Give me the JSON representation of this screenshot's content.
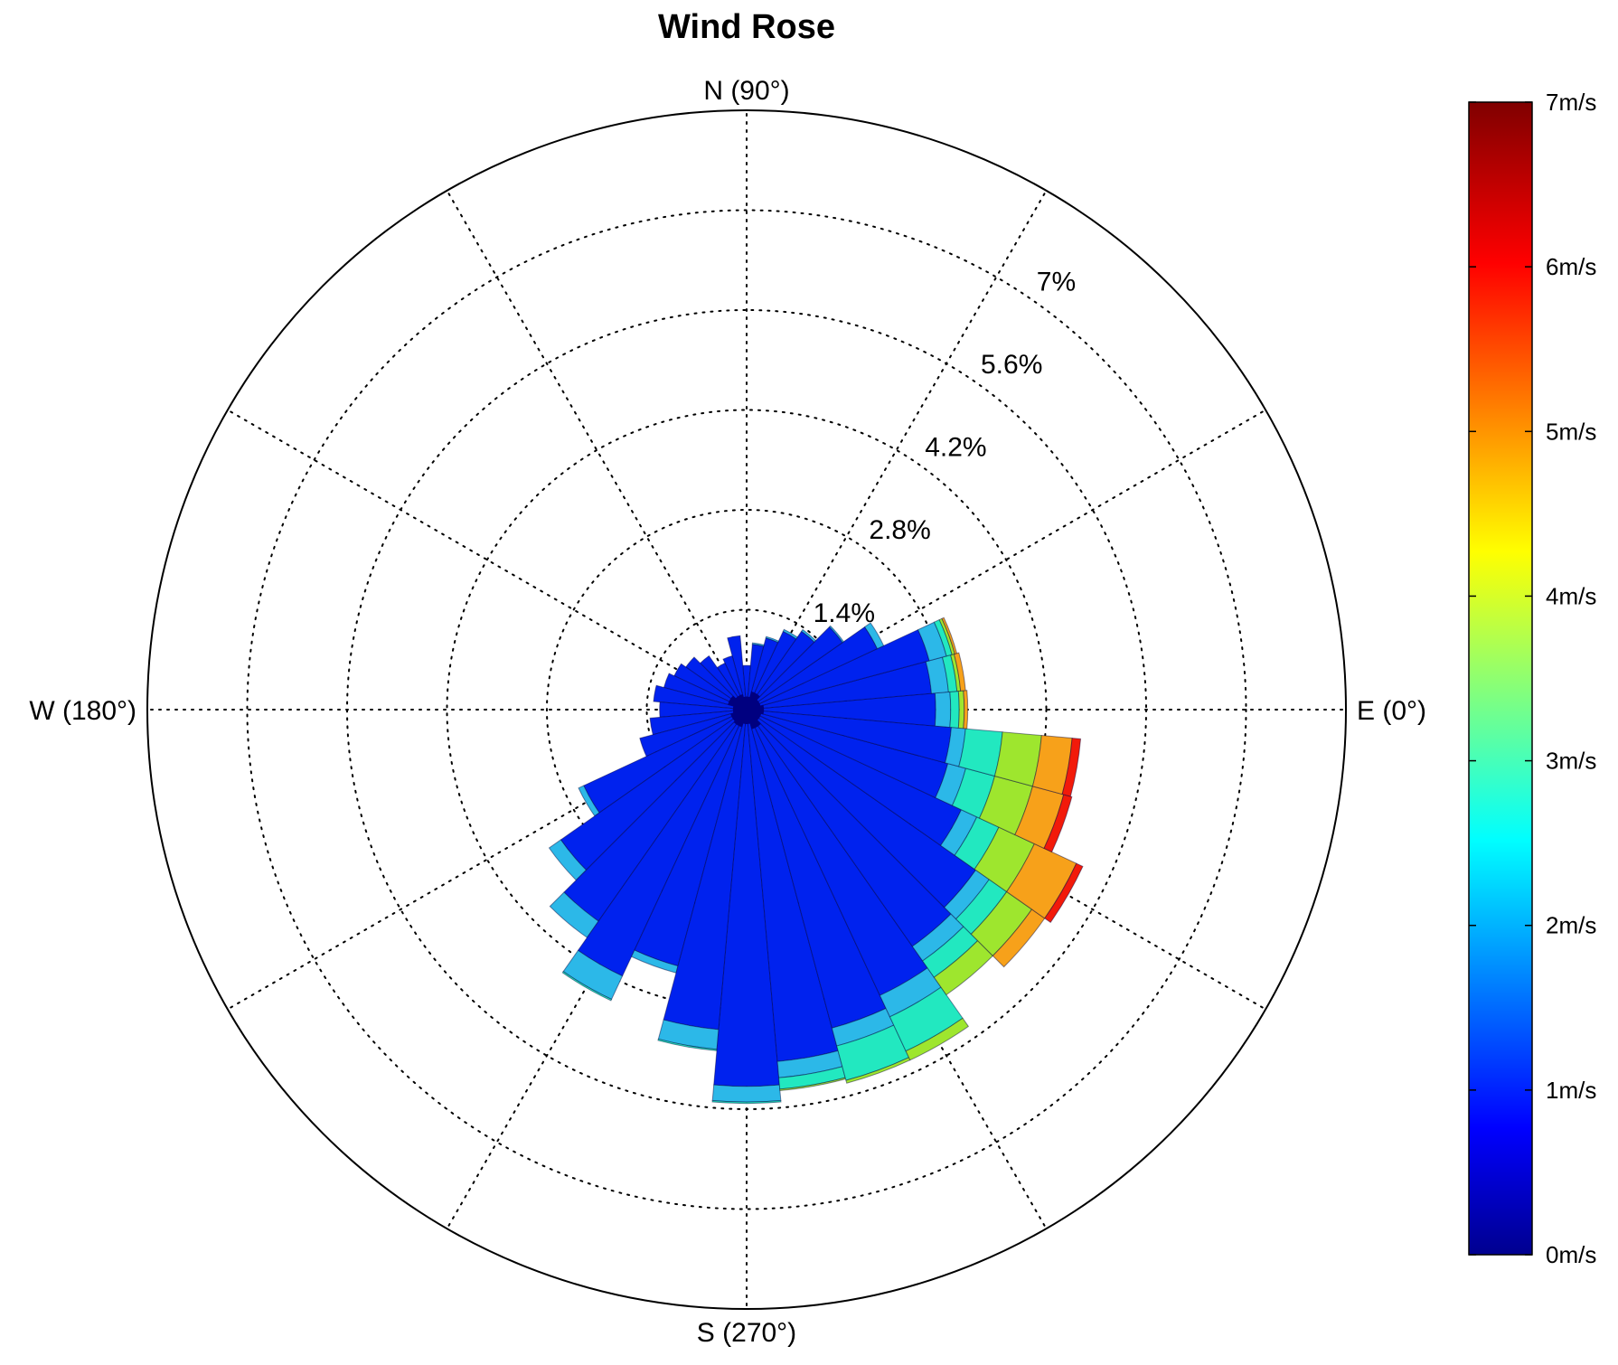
{
  "chart_data": {
    "type": "polar-bar",
    "title": "Wind Rose",
    "angle_convention": "math (0° = E, counter-clockwise, 90° = N)",
    "direction_labels": [
      {
        "text": "N (90°)",
        "angle": 90
      },
      {
        "text": "W (180°)",
        "angle": 180
      },
      {
        "text": "S (270°)",
        "angle": 270
      },
      {
        "text": "E (0°)",
        "angle": 0
      }
    ],
    "radial_max": 8.4,
    "radial_ticks": [
      {
        "value": 1.4,
        "label": "1.4%"
      },
      {
        "value": 2.8,
        "label": "2.8%"
      },
      {
        "value": 4.2,
        "label": "4.2%"
      },
      {
        "value": 5.6,
        "label": "5.6%"
      },
      {
        "value": 7.0,
        "label": "7%"
      }
    ],
    "radial_label_angle": 56,
    "spoke_angles": [
      0,
      30,
      60,
      90,
      120,
      150,
      180,
      210,
      240,
      270,
      300,
      330
    ],
    "grid": "dotted",
    "speed_bin_edges_ms": [
      0,
      1,
      2,
      3,
      4,
      5,
      6,
      7
    ],
    "speed_bin_colors": [
      "#0000aa",
      "#0022ee",
      "#2cb8e8",
      "#22e8c0",
      "#9ee62e",
      "#f7a11a",
      "#f21a0a"
    ],
    "sector_width_deg": 10,
    "sectors": [
      {
        "direction": 0,
        "cumulative_percent": [
          0.0,
          2.65,
          2.86,
          2.98,
          3.05,
          3.1,
          3.1
        ]
      },
      {
        "direction": 10,
        "cumulative_percent": [
          0.0,
          2.6,
          2.84,
          2.96,
          3.01,
          3.08,
          3.08
        ]
      },
      {
        "direction": 20,
        "cumulative_percent": [
          0.0,
          2.65,
          2.9,
          2.98,
          3.02,
          3.05,
          3.05
        ]
      },
      {
        "direction": 30,
        "cumulative_percent": [
          0.0,
          2.02,
          2.12,
          2.12,
          2.12,
          2.12,
          2.12
        ]
      },
      {
        "direction": 40,
        "cumulative_percent": [
          0.0,
          1.64,
          1.66,
          1.66,
          1.66,
          1.66,
          1.66
        ]
      },
      {
        "direction": 50,
        "cumulative_percent": [
          0.0,
          1.34,
          1.37,
          1.37,
          1.37,
          1.37,
          1.37
        ]
      },
      {
        "direction": 60,
        "cumulative_percent": [
          0.0,
          1.21,
          1.24,
          1.24,
          1.24,
          1.24,
          1.24
        ]
      },
      {
        "direction": 70,
        "cumulative_percent": [
          0.0,
          1.04,
          1.06,
          1.06,
          1.06,
          1.06,
          1.06
        ]
      },
      {
        "direction": 80,
        "cumulative_percent": [
          0.0,
          0.92,
          0.94,
          0.94,
          0.94,
          0.94,
          0.94
        ]
      },
      {
        "direction": 90,
        "cumulative_percent": [
          0.0,
          0.62,
          0.62,
          0.62,
          0.62,
          0.62,
          0.62
        ]
      },
      {
        "direction": 100,
        "cumulative_percent": [
          0.0,
          1.04,
          1.04,
          1.04,
          1.04,
          1.04,
          1.04
        ]
      },
      {
        "direction": 110,
        "cumulative_percent": [
          0.0,
          0.78,
          0.78,
          0.78,
          0.78,
          0.78,
          0.78
        ]
      },
      {
        "direction": 120,
        "cumulative_percent": [
          0.0,
          0.72,
          0.72,
          0.72,
          0.72,
          0.72,
          0.72
        ]
      },
      {
        "direction": 130,
        "cumulative_percent": [
          0.0,
          0.92,
          0.92,
          0.92,
          0.92,
          0.92,
          0.92
        ]
      },
      {
        "direction": 140,
        "cumulative_percent": [
          0.0,
          1.04,
          1.04,
          1.04,
          1.04,
          1.04,
          1.04
        ]
      },
      {
        "direction": 150,
        "cumulative_percent": [
          0.0,
          1.12,
          1.12,
          1.12,
          1.12,
          1.12,
          1.12
        ]
      },
      {
        "direction": 160,
        "cumulative_percent": [
          0.0,
          1.2,
          1.2,
          1.2,
          1.2,
          1.2,
          1.2
        ]
      },
      {
        "direction": 170,
        "cumulative_percent": [
          0.0,
          1.31,
          1.31,
          1.31,
          1.31,
          1.31,
          1.31
        ]
      },
      {
        "direction": 180,
        "cumulative_percent": [
          0.0,
          1.22,
          1.22,
          1.22,
          1.22,
          1.22,
          1.22
        ]
      },
      {
        "direction": 190,
        "cumulative_percent": [
          0.0,
          1.36,
          1.36,
          1.36,
          1.36,
          1.36,
          1.36
        ]
      },
      {
        "direction": 200,
        "cumulative_percent": [
          0.0,
          1.55,
          1.55,
          1.55,
          1.55,
          1.55,
          1.55
        ]
      },
      {
        "direction": 210,
        "cumulative_percent": [
          0.0,
          2.52,
          2.6,
          2.6,
          2.6,
          2.6,
          2.6
        ]
      },
      {
        "direction": 220,
        "cumulative_percent": [
          0.0,
          3.18,
          3.38,
          3.38,
          3.38,
          3.38,
          3.38
        ]
      },
      {
        "direction": 230,
        "cumulative_percent": [
          0.0,
          3.62,
          3.9,
          3.9,
          3.9,
          3.9,
          3.9
        ]
      },
      {
        "direction": 240,
        "cumulative_percent": [
          0.0,
          4.12,
          4.48,
          4.5,
          4.5,
          4.5,
          4.5
        ]
      },
      {
        "direction": 250,
        "cumulative_percent": [
          0.0,
          3.72,
          3.82,
          3.82,
          3.82,
          3.82,
          3.82
        ]
      },
      {
        "direction": 260,
        "cumulative_percent": [
          0.0,
          4.5,
          4.78,
          4.8,
          4.8,
          4.8,
          4.8
        ]
      },
      {
        "direction": 270,
        "cumulative_percent": [
          0.0,
          5.28,
          5.5,
          5.52,
          5.52,
          5.52,
          5.52
        ]
      },
      {
        "direction": 280,
        "cumulative_percent": [
          0.0,
          4.95,
          5.18,
          5.34,
          5.36,
          5.36,
          5.36
        ]
      },
      {
        "direction": 290,
        "cumulative_percent": [
          0.0,
          4.62,
          4.88,
          5.38,
          5.42,
          5.42,
          5.42
        ]
      },
      {
        "direction": 300,
        "cumulative_percent": [
          0.0,
          4.42,
          4.75,
          5.28,
          5.42,
          5.42,
          5.42
        ]
      },
      {
        "direction": 310,
        "cumulative_percent": [
          0.0,
          4.05,
          4.3,
          4.58,
          4.88,
          4.88,
          4.88
        ]
      },
      {
        "direction": 320,
        "cumulative_percent": [
          0.0,
          3.92,
          4.15,
          4.45,
          4.88,
          5.1,
          5.1
        ]
      },
      {
        "direction": 330,
        "cumulative_percent": [
          0.0,
          3.32,
          3.56,
          3.9,
          4.45,
          5.1,
          5.2
        ]
      },
      {
        "direction": 340,
        "cumulative_percent": [
          0.0,
          2.92,
          3.18,
          3.6,
          4.15,
          4.6,
          4.72
        ]
      },
      {
        "direction": 350,
        "cumulative_percent": [
          0.0,
          2.88,
          3.08,
          3.6,
          4.15,
          4.58,
          4.7
        ]
      }
    ],
    "colorbar": {
      "min": 0,
      "max": 7,
      "tick_labels": [
        "0m/s",
        "1m/s",
        "2m/s",
        "3m/s",
        "4m/s",
        "5m/s",
        "6m/s",
        "7m/s"
      ],
      "colormap": "jet"
    }
  }
}
